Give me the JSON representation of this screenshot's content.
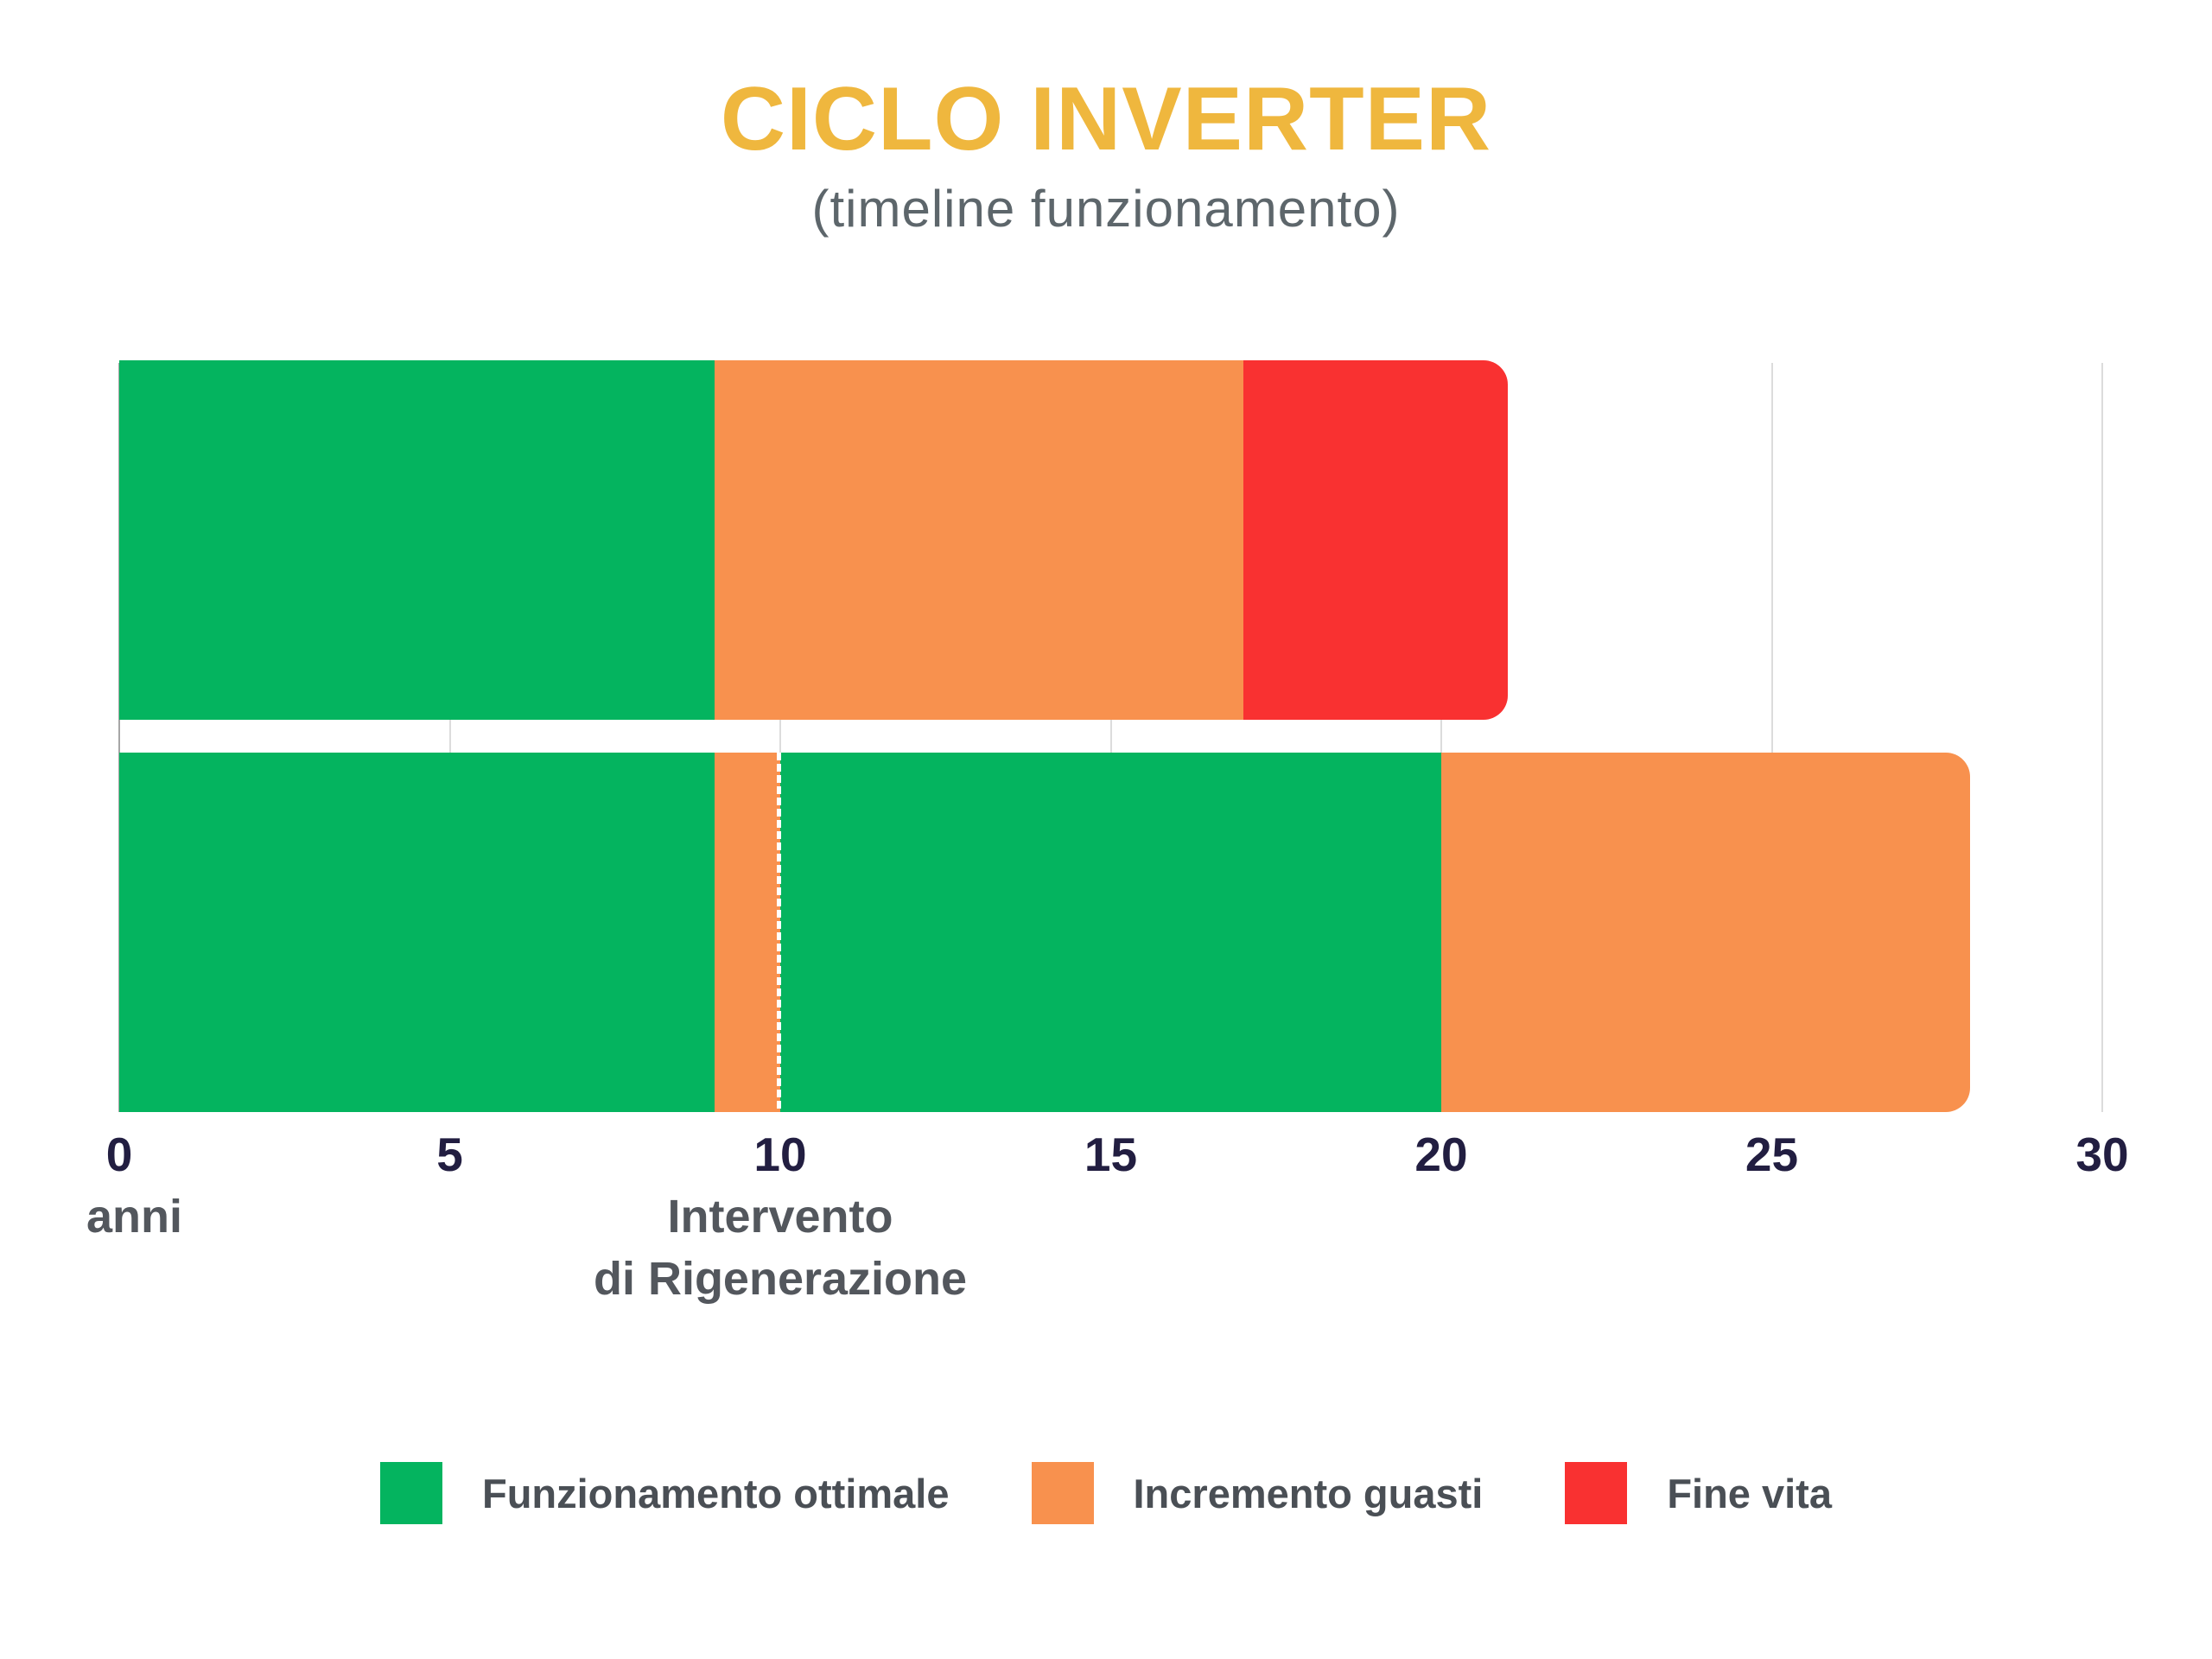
{
  "header": {
    "title": "CICLO INVERTER",
    "subtitle": "(timeline funzionamento)"
  },
  "colors": {
    "title_accent": "#EFB73E",
    "subtitle_gray": "#5D666B",
    "tick_label": "#221E41",
    "axis_note_gray": "#53575D",
    "legend_text": "#4A4F55",
    "gridline": "#DCDCDC",
    "axis_line": "#A6A6A6",
    "optimal_green": "#04B45F",
    "faults_orange": "#F8914E",
    "end_of_life_red": "#F93131"
  },
  "chart_data": {
    "type": "bar",
    "orientation": "horizontal-stacked-timeline",
    "title": "CICLO INVERTER",
    "subtitle": "(timeline funzionamento)",
    "grid": "vertical-ticks-on",
    "legend_position": "bottom-center",
    "x_axis": {
      "min": 0,
      "max": 30,
      "ticks": [
        0,
        5,
        10,
        15,
        20,
        25,
        30
      ],
      "unit_label": "anni"
    },
    "bars": [
      {
        "row": 1,
        "description": "timeline senza rigenerazione",
        "rounded_end": true,
        "segments": [
          {
            "phase": "Funzionamento ottimale",
            "start": 0,
            "end": 9,
            "color": "#04B45F"
          },
          {
            "phase": "Incremento guasti",
            "start": 9,
            "end": 17,
            "color": "#F8914E"
          },
          {
            "phase": "Fine vita",
            "start": 17,
            "end": 21,
            "color": "#F93131"
          }
        ]
      },
      {
        "row": 2,
        "description": "timeline con rigenerazione",
        "rounded_end": true,
        "segments": [
          {
            "phase": "Funzionamento ottimale",
            "start": 0,
            "end": 9,
            "color": "#04B45F"
          },
          {
            "phase": "Incremento guasti",
            "start": 9,
            "end": 10,
            "color": "#F8914E"
          },
          {
            "phase": "Funzionamento ottimale",
            "start": 10,
            "end": 20,
            "color": "#04B45F"
          },
          {
            "phase": "Incremento guasti",
            "start": 20,
            "end": 28,
            "color": "#F8914E"
          }
        ],
        "marker": {
          "x": 10,
          "style": "dashed-white-line"
        }
      }
    ],
    "annotations": [
      {
        "x": 10,
        "text_lines": [
          "Intervento",
          "di Rigenerazione"
        ]
      }
    ],
    "legend": [
      {
        "label": "Funzionamento ottimale",
        "color": "#04B45F"
      },
      {
        "label": "Incremento guasti",
        "color": "#F8914E"
      },
      {
        "label": "Fine vita",
        "color": "#F93131"
      }
    ]
  }
}
